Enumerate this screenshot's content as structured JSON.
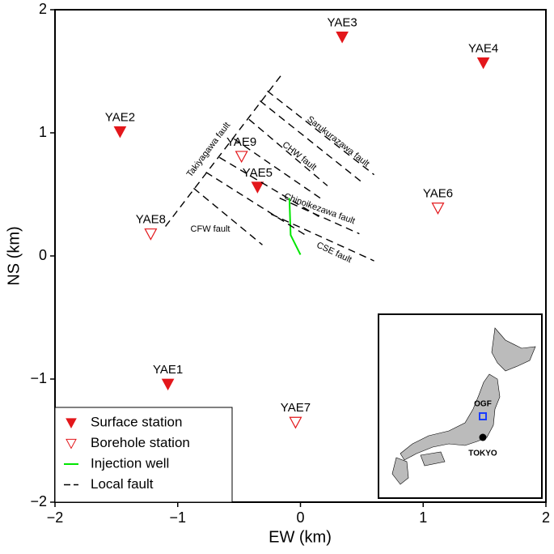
{
  "chart_data": {
    "type": "scatter",
    "xlabel": "EW (km)",
    "ylabel": "NS (km)",
    "xlim": [
      -2,
      2
    ],
    "ylim": [
      -2,
      2
    ],
    "xticks": [
      {
        "value": -2,
        "label": "−2"
      },
      {
        "value": -1,
        "label": "−1"
      },
      0,
      1,
      2
    ],
    "yticks": [
      {
        "value": -2,
        "label": "−2"
      },
      {
        "value": -1,
        "label": "−1"
      },
      0,
      1,
      2
    ],
    "legend": "lower left",
    "series": [
      {
        "name": "Surface station",
        "color": "#e3171b",
        "marker": "filled-triangle",
        "labels": [
          "YAE1",
          "YAE2",
          "YAE3",
          "YAE4",
          "YAE5"
        ],
        "x": [
          -1.08,
          -1.47,
          0.34,
          1.49,
          -0.35
        ],
        "y": [
          -1.04,
          1.01,
          1.78,
          1.57,
          0.56
        ]
      },
      {
        "name": "Borehole station",
        "color": "#e3171b",
        "marker": "open-triangle",
        "labels": [
          "YAE6",
          "YAE7",
          "YAE8",
          "YAE9"
        ],
        "x": [
          1.12,
          -0.04,
          -1.22,
          -0.48
        ],
        "y": [
          0.39,
          -1.35,
          0.18,
          0.81
        ]
      },
      {
        "name": "Injection well",
        "color": "#00e600",
        "marker": "line",
        "x": [
          -0.09,
          -0.08,
          0.0
        ],
        "y": [
          0.47,
          0.17,
          0.01
        ]
      },
      {
        "name": "Local fault",
        "color": "#000000",
        "marker": "dashed-line",
        "segments": [
          {
            "x": [
              -1.1,
              -0.14
            ],
            "y": [
              0.24,
              1.49
            ]
          },
          {
            "x": [
              -0.27,
              0.6
            ],
            "y": [
              1.34,
              0.66
            ]
          },
          {
            "x": [
              -0.33,
              0.5
            ],
            "y": [
              1.26,
              0.6
            ]
          },
          {
            "x": [
              -0.42,
              0.22
            ],
            "y": [
              1.11,
              0.57
            ]
          },
          {
            "x": [
              -0.54,
              0.19
            ],
            "y": [
              0.95,
              0.45
            ]
          },
          {
            "x": [
              -0.66,
              0.15
            ],
            "y": [
              0.8,
              0.32
            ]
          },
          {
            "x": [
              -0.77,
              0.04
            ],
            "y": [
              0.68,
              0.17
            ]
          },
          {
            "x": [
              -0.87,
              -0.31
            ],
            "y": [
              0.55,
              0.09
            ]
          },
          {
            "x": [
              -0.24,
              0.6
            ],
            "y": [
              0.34,
              -0.04
            ]
          },
          {
            "x": [
              -0.17,
              0.48
            ],
            "y": [
              0.47,
              0.18
            ]
          }
        ]
      }
    ],
    "annotations": [
      "Takiyagawa fault",
      "Sarukurazawa fault",
      "CHW fault",
      "Chinoikezawa fault",
      "CFW fault",
      "CSE fault"
    ],
    "inset": {
      "labels": [
        "OGF",
        "TOKYO"
      ]
    }
  }
}
